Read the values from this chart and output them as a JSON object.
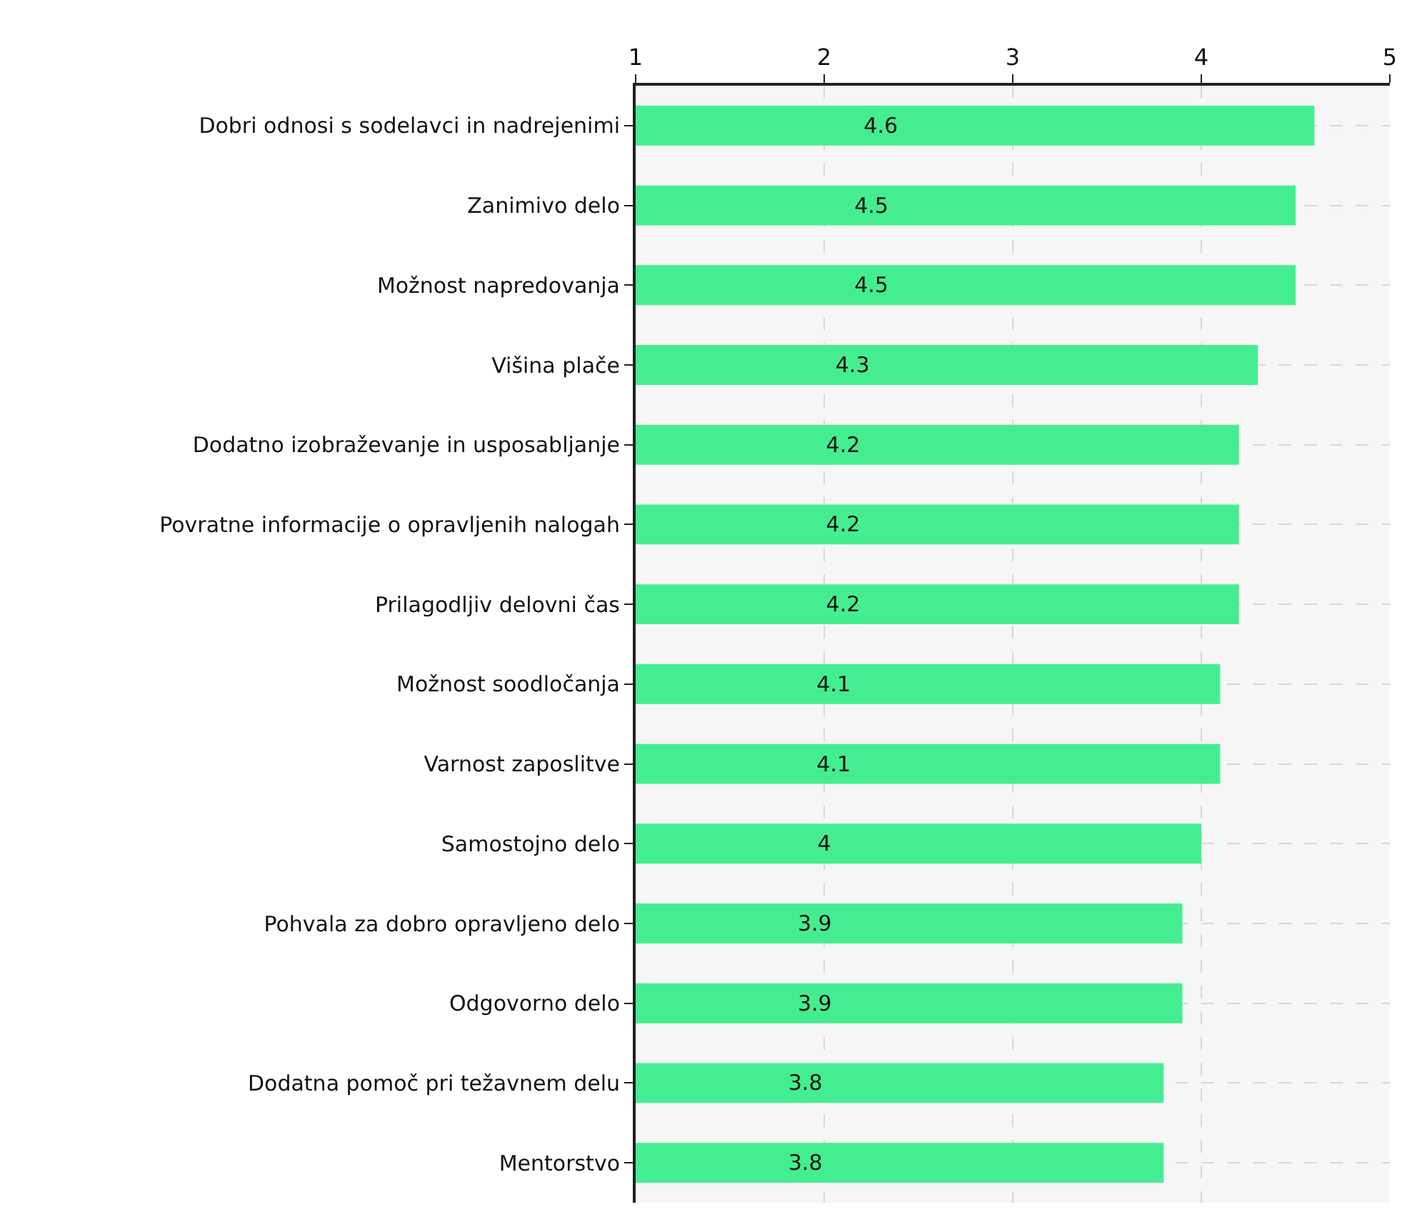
{
  "chart_data": {
    "type": "bar",
    "orientation": "horizontal",
    "categories": [
      "Dobri odnosi s sodelavci in nadrejenimi",
      "Zanimivo delo",
      "Možnost napredovanja",
      "Višina plače",
      "Dodatno izobraževanje in usposabljanje",
      "Povratne informacije o opravljenih nalogah",
      "Prilagodljiv delovni čas",
      "Možnost soodločanja",
      "Varnost zaposlitve",
      "Samostojno delo",
      "Pohvala za dobro opravljeno delo",
      "Odgovorno delo",
      "Dodatna pomoč pri težavnem delu",
      "Mentorstvo"
    ],
    "values": [
      4.6,
      4.5,
      4.5,
      4.3,
      4.2,
      4.2,
      4.2,
      4.1,
      4.1,
      4,
      3.9,
      3.9,
      3.8,
      3.8
    ],
    "color": "#44ee90",
    "xlim": [
      1,
      5
    ],
    "xticks": [
      1,
      2,
      3,
      4,
      5
    ],
    "grid": true,
    "data_labels": true
  }
}
